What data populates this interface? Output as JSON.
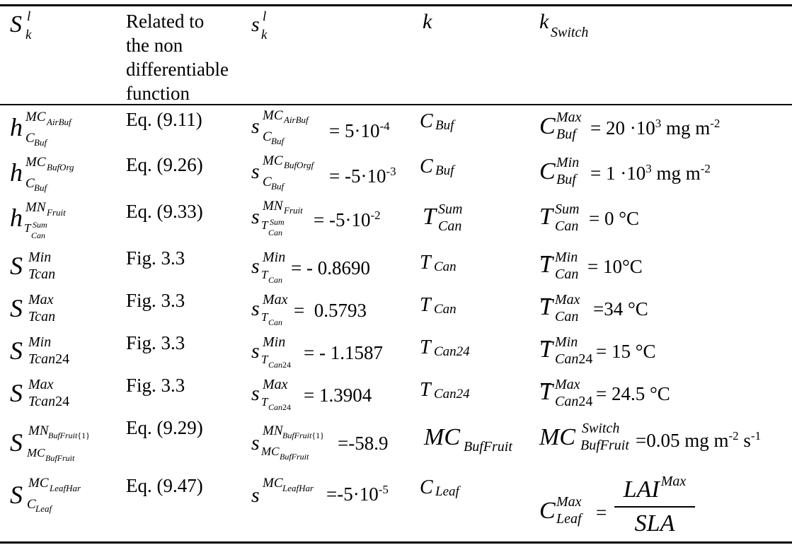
{
  "header": {
    "col1": {
      "base": "S",
      "sup": "l",
      "sub": "k"
    },
    "col2_lines": [
      "Related to",
      "the non",
      "differentiable",
      "function"
    ],
    "col3": {
      "base": "s",
      "sup": "l",
      "sub": "k"
    },
    "col4": {
      "base": "k"
    },
    "col5": {
      "base": "k",
      "sub": "Switch"
    }
  },
  "rows": [
    {
      "s_big": {
        "base": "h",
        "sup": "MC",
        "supsub": "AirBuf",
        "sub": "C",
        "subsub": "Buf"
      },
      "ref": "Eq. (9.11)",
      "s_small": {
        "base": "s",
        "sup": "MC",
        "supsub": "AirBuf",
        "sub": "C",
        "subsub": "Buf",
        "value": "= 5·10",
        "exp": "-4"
      },
      "k": {
        "base": "C",
        "sub": "Buf"
      },
      "switch": {
        "base": "C",
        "sup": "Max",
        "sub": "Buf",
        "value": "= 20 ·10",
        "exp": "3",
        "unit": " mg m",
        "unit_exp": "-2"
      }
    },
    {
      "s_big": {
        "base": "h",
        "sup": "MC",
        "supsub": "BufOrg",
        "sub": "C",
        "subsub": "Buf"
      },
      "ref": "Eq. (9.26)",
      "s_small": {
        "base": "s",
        "sup": "MC",
        "supsub": "BufOrgf",
        "sub": "C",
        "subsub": "Buf",
        "value": "= -5·10",
        "exp": "-3"
      },
      "k": {
        "base": "C",
        "sub": "Buf"
      },
      "switch": {
        "base": "C",
        "sup": "Min",
        "sub": "Buf",
        "value": "= 1 ·10",
        "exp": "3",
        "unit": " mg m",
        "unit_exp": "-2"
      }
    },
    {
      "s_big": {
        "base": "h",
        "sup": "MN",
        "supsub": "Fruit",
        "sub": "T",
        "subsup": "Sum",
        "subsub": "Can"
      },
      "ref": "Eq. (9.33)",
      "s_small": {
        "base": "s",
        "sup": "MN",
        "supsub": "Fruit",
        "sub": "T",
        "subsup": "Sum",
        "subsub": "Can",
        "value": "= -5·10",
        "exp": "-2"
      },
      "k": {
        "base": "T",
        "sup": "Sum",
        "sub": "Can"
      },
      "switch": {
        "base": "T",
        "sup": "Sum",
        "sub": "Can",
        "value": "= 0 °C"
      }
    },
    {
      "s_big": {
        "base": "S",
        "sup": "Min",
        "sub": "Tcan"
      },
      "ref": "Fig. 3.3",
      "s_small": {
        "base": "s",
        "sup": "Min",
        "sub": "T",
        "subsub": "Can",
        "value": "= - 0.8690"
      },
      "k": {
        "base": "T",
        "sub": "Can"
      },
      "switch": {
        "base": "T",
        "sup": "Min",
        "sub": "Can",
        "value": "= 10°C"
      }
    },
    {
      "s_big": {
        "base": "S",
        "sup": "Max",
        "sub": "Tcan"
      },
      "ref": "Fig. 3.3",
      "s_small": {
        "base": "s",
        "sup": "Max",
        "sub": "T",
        "subsub": "Can",
        "value": "=  0.5793"
      },
      "k": {
        "base": "T",
        "sub": "Can"
      },
      "switch": {
        "base": "T",
        "sup": "Max",
        "sub": "Can",
        "value": "=34 °C"
      }
    },
    {
      "s_big": {
        "base": "S",
        "sup": "Min",
        "sub": "Tcan",
        "subnum": "24"
      },
      "ref": "Fig. 3.3",
      "s_small": {
        "base": "s",
        "sup": "Min",
        "sub": "T",
        "subsub": "Can",
        "subnum": "24",
        "value": "= - 1.1587"
      },
      "k": {
        "base": "T",
        "sub": "Can24"
      },
      "switch": {
        "base": "T",
        "sup": "Min",
        "sub": "Can",
        "subnum": "24",
        "value": "= 15 °C"
      }
    },
    {
      "s_big": {
        "base": "S",
        "sup": "Max",
        "sub": "Tcan",
        "subnum": "24"
      },
      "ref": "Fig. 3.3",
      "s_small": {
        "base": "s",
        "sup": "Max",
        "sub": "T",
        "subsub": "Can",
        "subnum": "24",
        "value": "= 1.3904"
      },
      "k": {
        "base": "T",
        "sub": "Can24"
      },
      "switch": {
        "base": "T",
        "sup": "Max",
        "sub": "Can",
        "subnum": "24",
        "value": "= 24.5 °C"
      }
    },
    {
      "s_big": {
        "base": "S",
        "sup": "MN",
        "supsub": "BufFruit",
        "supbrace": "{1}",
        "sub": "MC",
        "subsub": "BufFruit"
      },
      "ref": "Eq. (9.29)",
      "s_small": {
        "base": "s",
        "sup": "MN",
        "supsub": "BufFruit",
        "supbrace": "{1}",
        "sub": "MC",
        "subsub": "BufFruit",
        "value": "=-58.9"
      },
      "k": {
        "base": "MC",
        "sub": "BufFruit"
      },
      "switch": {
        "base": "MC",
        "sup": "Switch",
        "sub": "BufFruit",
        "value": "=0.05 mg m",
        "unit_exp": "-2",
        "unit2": " s",
        "unit2_exp": "-1"
      }
    },
    {
      "s_big": {
        "base": "S",
        "sup": "MC",
        "supsub": "LeafHar",
        "sub": "C",
        "subsub": "Leaf"
      },
      "ref": "Eq. (9.47)",
      "s_small": {
        "base": "s",
        "sup": "MC",
        "supsub": "LeafHar",
        "value": "=-5·10",
        "exp": "-5"
      },
      "k": {
        "base": "C",
        "sub": "Leaf"
      },
      "switch": {
        "base": "C",
        "sup": "Max",
        "sub": "Leaf",
        "value": "=",
        "frac_num": "LAI",
        "frac_num_sup": "Max",
        "frac_den": "SLA"
      }
    }
  ]
}
